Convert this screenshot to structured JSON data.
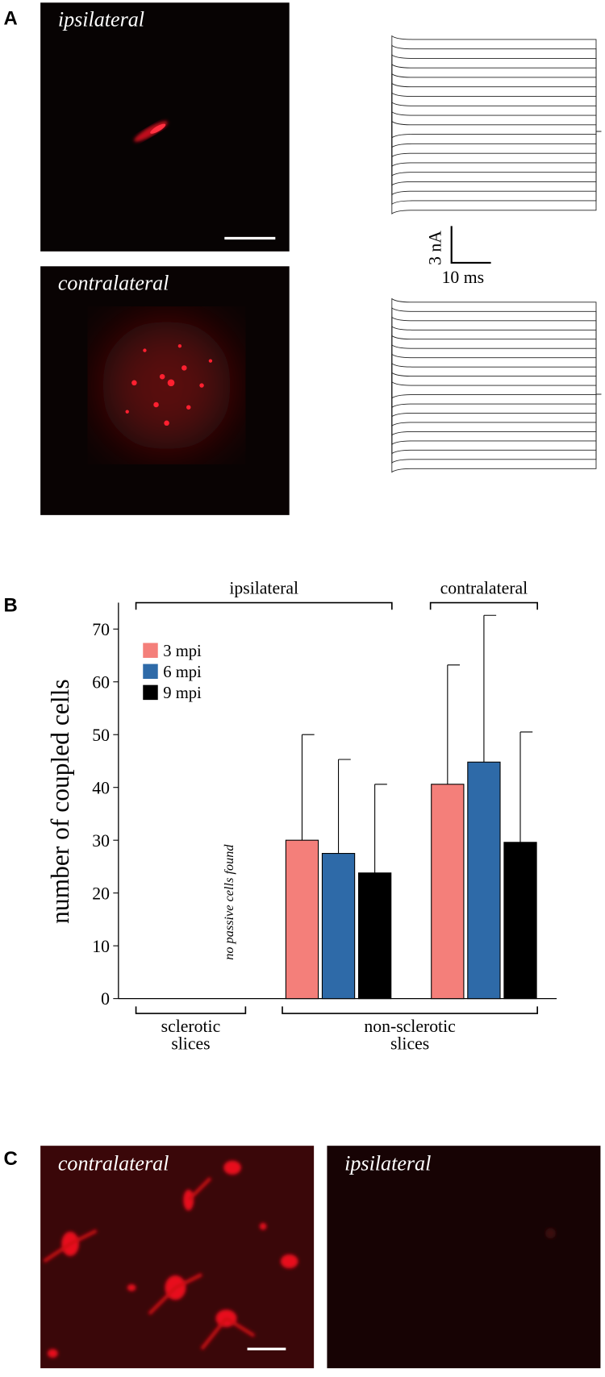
{
  "panel_labels": [
    "A",
    "B",
    "C"
  ],
  "panel_a": {
    "images": [
      {
        "label": "ipsilateral"
      },
      {
        "label": "contralateral"
      }
    ],
    "scale_bar": {
      "current": "3 nA",
      "time": "10 ms"
    }
  },
  "chart_data": {
    "type": "bar",
    "ylabel": "number of coupled cells",
    "categories": [
      null,
      null,
      null
    ],
    "series": [
      {
        "name": "3 mpi",
        "color": "#f47f7a",
        "values": [
          null,
          30,
          40.6
        ],
        "errors": [
          null,
          20,
          22.6
        ]
      },
      {
        "name": "6 mpi",
        "color": "#2e6aa8",
        "values": [
          null,
          27.5,
          44.8
        ],
        "errors": [
          null,
          17.8,
          27.8
        ]
      },
      {
        "name": "9 mpi",
        "color": "#000000",
        "values": [
          null,
          23.8,
          29.6
        ],
        "errors": [
          null,
          16.8,
          20.9
        ]
      }
    ],
    "ylim": [
      0,
      75
    ],
    "yticks": [
      0,
      10,
      20,
      30,
      40,
      50,
      60,
      70
    ],
    "top_groups": [
      {
        "label": "ipsilateral"
      },
      {
        "label": "contralateral"
      }
    ],
    "bottom_groups": [
      {
        "lines": [
          "sclerotic",
          "slices"
        ]
      },
      {
        "lines": [
          "non-sclerotic",
          "slices"
        ]
      }
    ],
    "annotation": "no passive cells found"
  },
  "panel_c": {
    "images": [
      {
        "label": "contralateral"
      },
      {
        "label": "ipsilateral"
      }
    ]
  }
}
